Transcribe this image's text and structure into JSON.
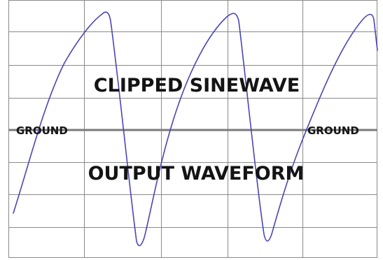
{
  "labels": {
    "title": "CLIPPED SINEWAVE",
    "subtitle": "OUTPUT WAVEFORM",
    "ground_left": "GROUND",
    "ground_right": "GROUND"
  },
  "colors": {
    "wave": "#4a46b8",
    "grid": "#8a8a8a",
    "ground": "#7a7a7a",
    "text": "#141414"
  }
}
